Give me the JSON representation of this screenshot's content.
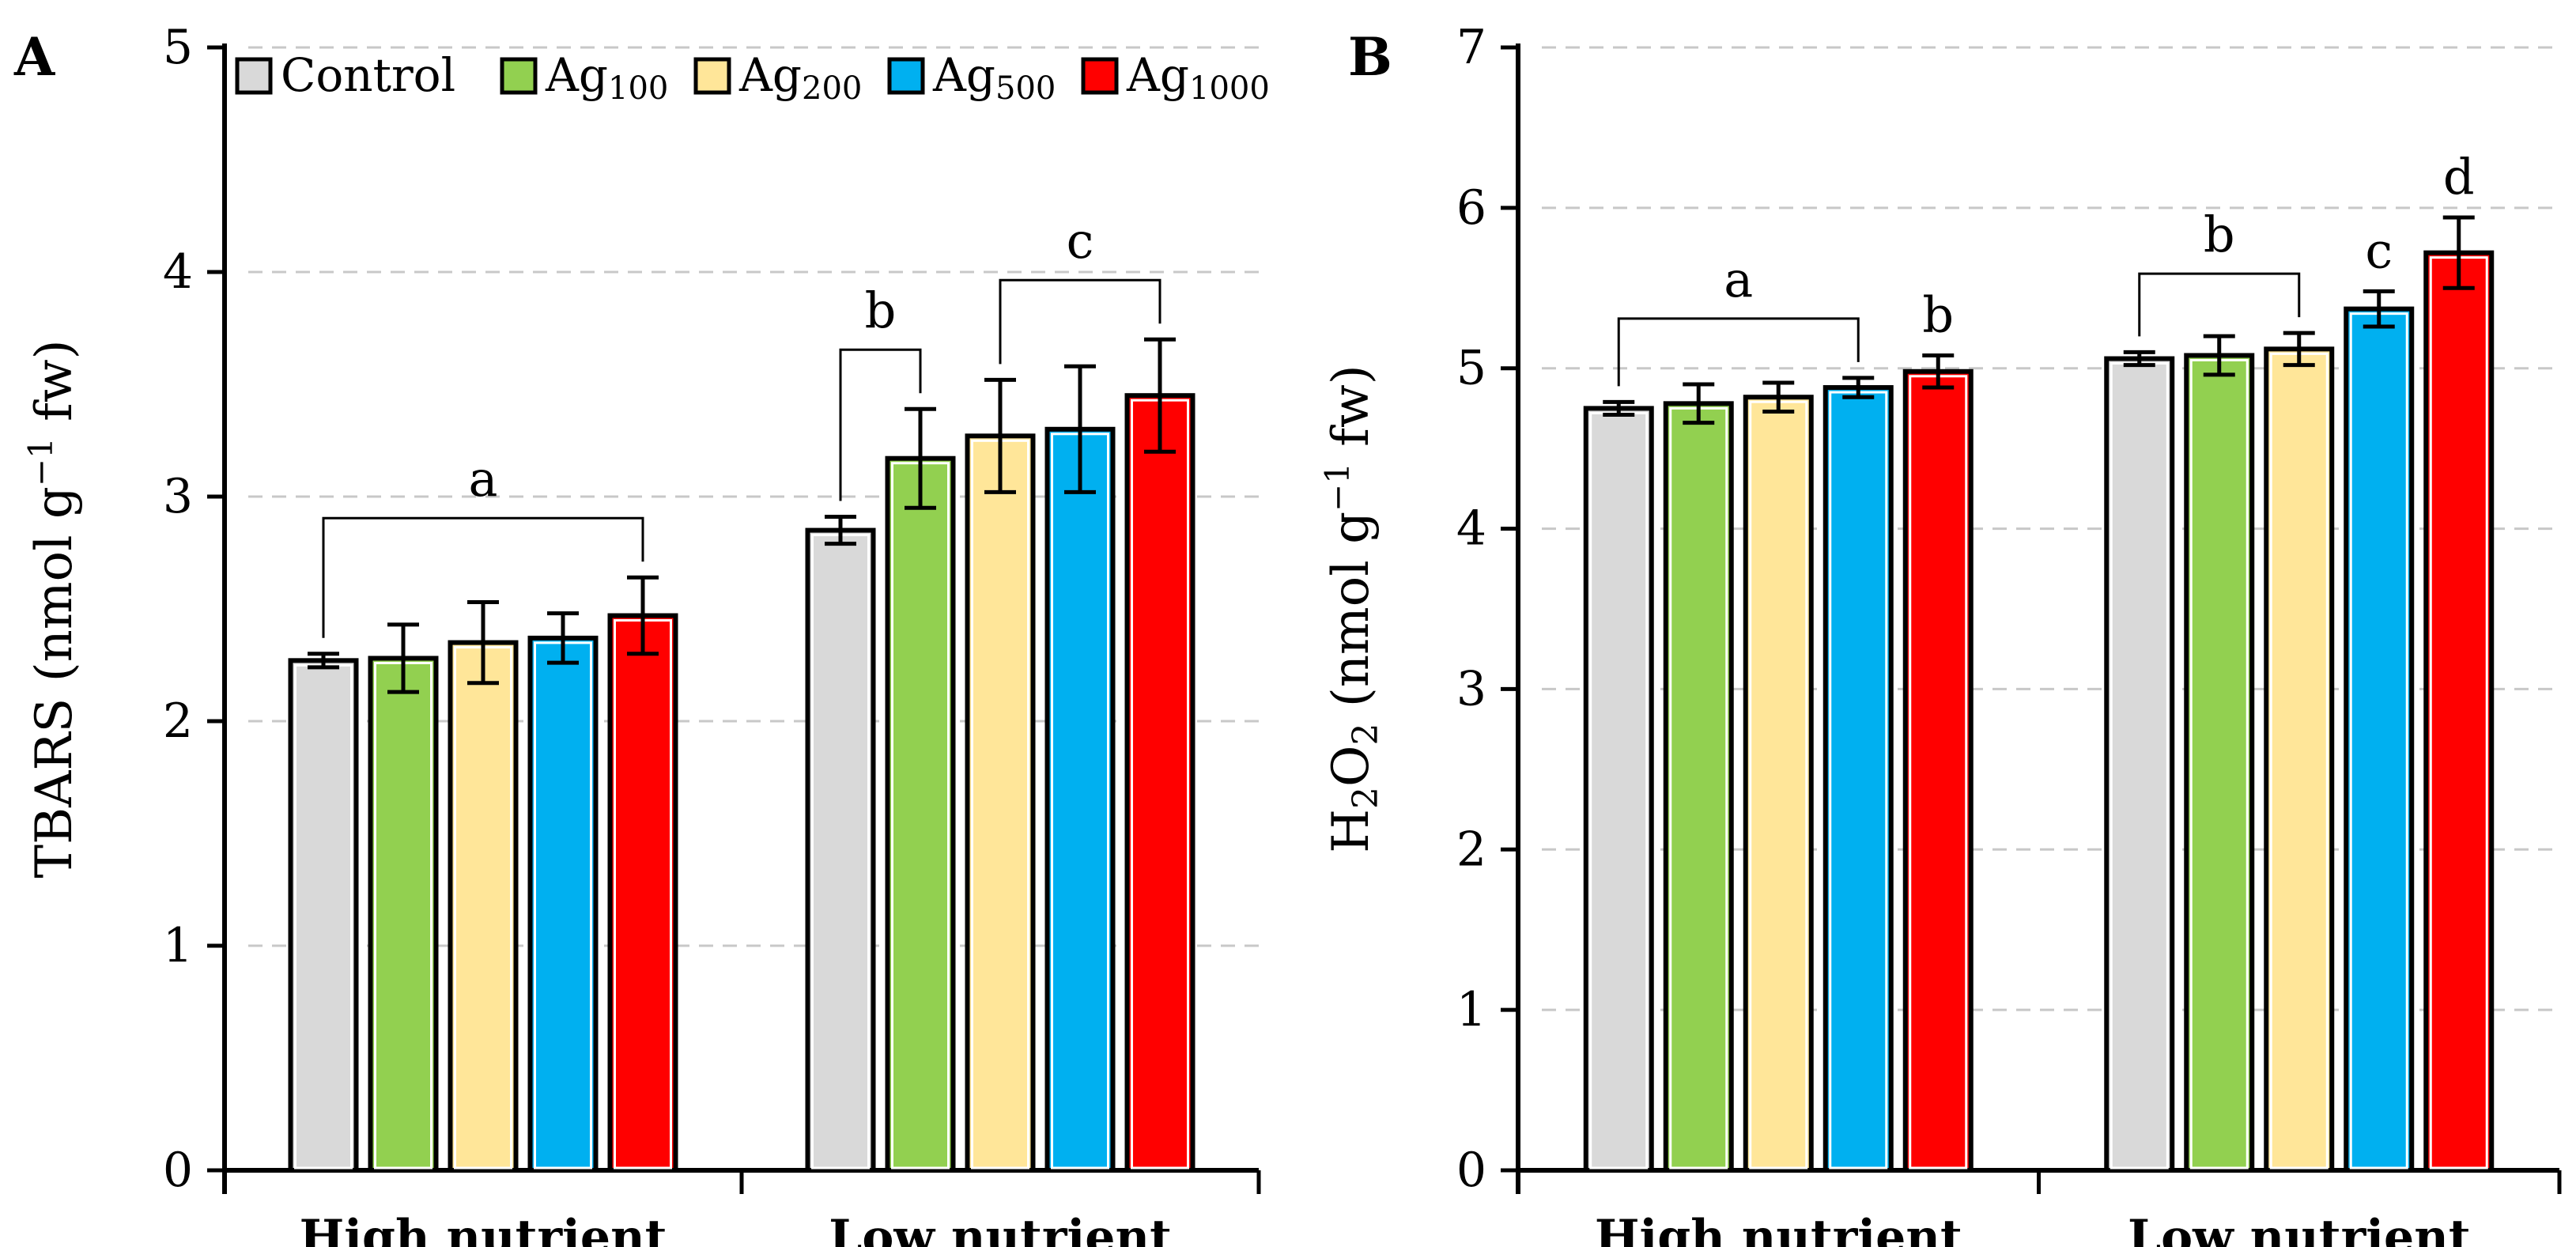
{
  "legend": [
    {
      "label": "Control",
      "base": "Control",
      "sub": "",
      "color": "#d9d9d9"
    },
    {
      "label": "Ag100",
      "base": "Ag",
      "sub": "100",
      "color": "#92d050"
    },
    {
      "label": "Ag200",
      "base": "Ag",
      "sub": "200",
      "color": "#ffe699"
    },
    {
      "label": "Ag500",
      "base": "Ag",
      "sub": "500",
      "color": "#00b0f0"
    },
    {
      "label": "Ag1000",
      "base": "Ag",
      "sub": "1000",
      "color": "#ff0000"
    }
  ],
  "chart_data": [
    {
      "type": "bar",
      "panel_label": "A",
      "title": "",
      "ylabel": "TBARS (nmol g⁻¹ fw)",
      "ylabel_parts": {
        "pre": "TBARS (nmol g",
        "sup": "−1",
        "post": " fw)",
        "sub_text": ""
      },
      "ylim": [
        0,
        5
      ],
      "yticks": [
        0,
        1,
        2,
        3,
        4,
        5
      ],
      "grid": true,
      "legend_position": "top",
      "categories": [
        "High nutrient",
        "Low nutrient"
      ],
      "series": [
        {
          "name": "Control",
          "values": [
            2.27,
            2.85
          ],
          "errors": [
            0.03,
            0.06
          ]
        },
        {
          "name": "Ag100",
          "values": [
            2.28,
            3.17
          ],
          "errors": [
            0.15,
            0.22
          ]
        },
        {
          "name": "Ag200",
          "values": [
            2.35,
            3.27
          ],
          "errors": [
            0.18,
            0.25
          ]
        },
        {
          "name": "Ag500",
          "values": [
            2.37,
            3.3
          ],
          "errors": [
            0.11,
            0.28
          ]
        },
        {
          "name": "Ag1000",
          "values": [
            2.47,
            3.45
          ],
          "errors": [
            0.17,
            0.25
          ]
        }
      ],
      "annotations": [
        {
          "text": "a",
          "category": 0,
          "from": 0,
          "to": 4,
          "bracket": true
        },
        {
          "text": "b",
          "category": 1,
          "from": 0,
          "to": 1,
          "bracket": true
        },
        {
          "text": "c",
          "category": 1,
          "from": 2,
          "to": 4,
          "bracket": true
        }
      ]
    },
    {
      "type": "bar",
      "panel_label": "B",
      "title": "",
      "ylabel": "H₂O₂ (nmol g⁻¹ fw)",
      "ylabel_parts": {
        "pre": "H",
        "sub_text": "2",
        "mid": "O",
        "sub2": "2",
        "pre2": " (nmol g",
        "sup": "−1",
        "post": " fw)"
      },
      "ylim": [
        0,
        7
      ],
      "yticks": [
        0,
        1,
        2,
        3,
        4,
        5,
        6,
        7
      ],
      "grid": true,
      "categories": [
        "High nutrient",
        "Low nutrient"
      ],
      "series": [
        {
          "name": "Control",
          "values": [
            4.75,
            5.06
          ],
          "errors": [
            0.04,
            0.04
          ]
        },
        {
          "name": "Ag100",
          "values": [
            4.78,
            5.08
          ],
          "errors": [
            0.12,
            0.12
          ]
        },
        {
          "name": "Ag200",
          "values": [
            4.82,
            5.12
          ],
          "errors": [
            0.09,
            0.1
          ]
        },
        {
          "name": "Ag500",
          "values": [
            4.88,
            5.37
          ],
          "errors": [
            0.06,
            0.11
          ]
        },
        {
          "name": "Ag1000",
          "values": [
            4.98,
            5.72
          ],
          "errors": [
            0.1,
            0.22
          ]
        }
      ],
      "annotations": [
        {
          "text": "a",
          "category": 0,
          "from": 0,
          "to": 3,
          "bracket": true
        },
        {
          "text": "b",
          "category": 0,
          "from": 4,
          "to": 4,
          "bracket": false
        },
        {
          "text": "b",
          "category": 1,
          "from": 0,
          "to": 2,
          "bracket": true
        },
        {
          "text": "c",
          "category": 1,
          "from": 3,
          "to": 3,
          "bracket": false
        },
        {
          "text": "d",
          "category": 1,
          "from": 4,
          "to": 4,
          "bracket": false
        }
      ]
    }
  ]
}
